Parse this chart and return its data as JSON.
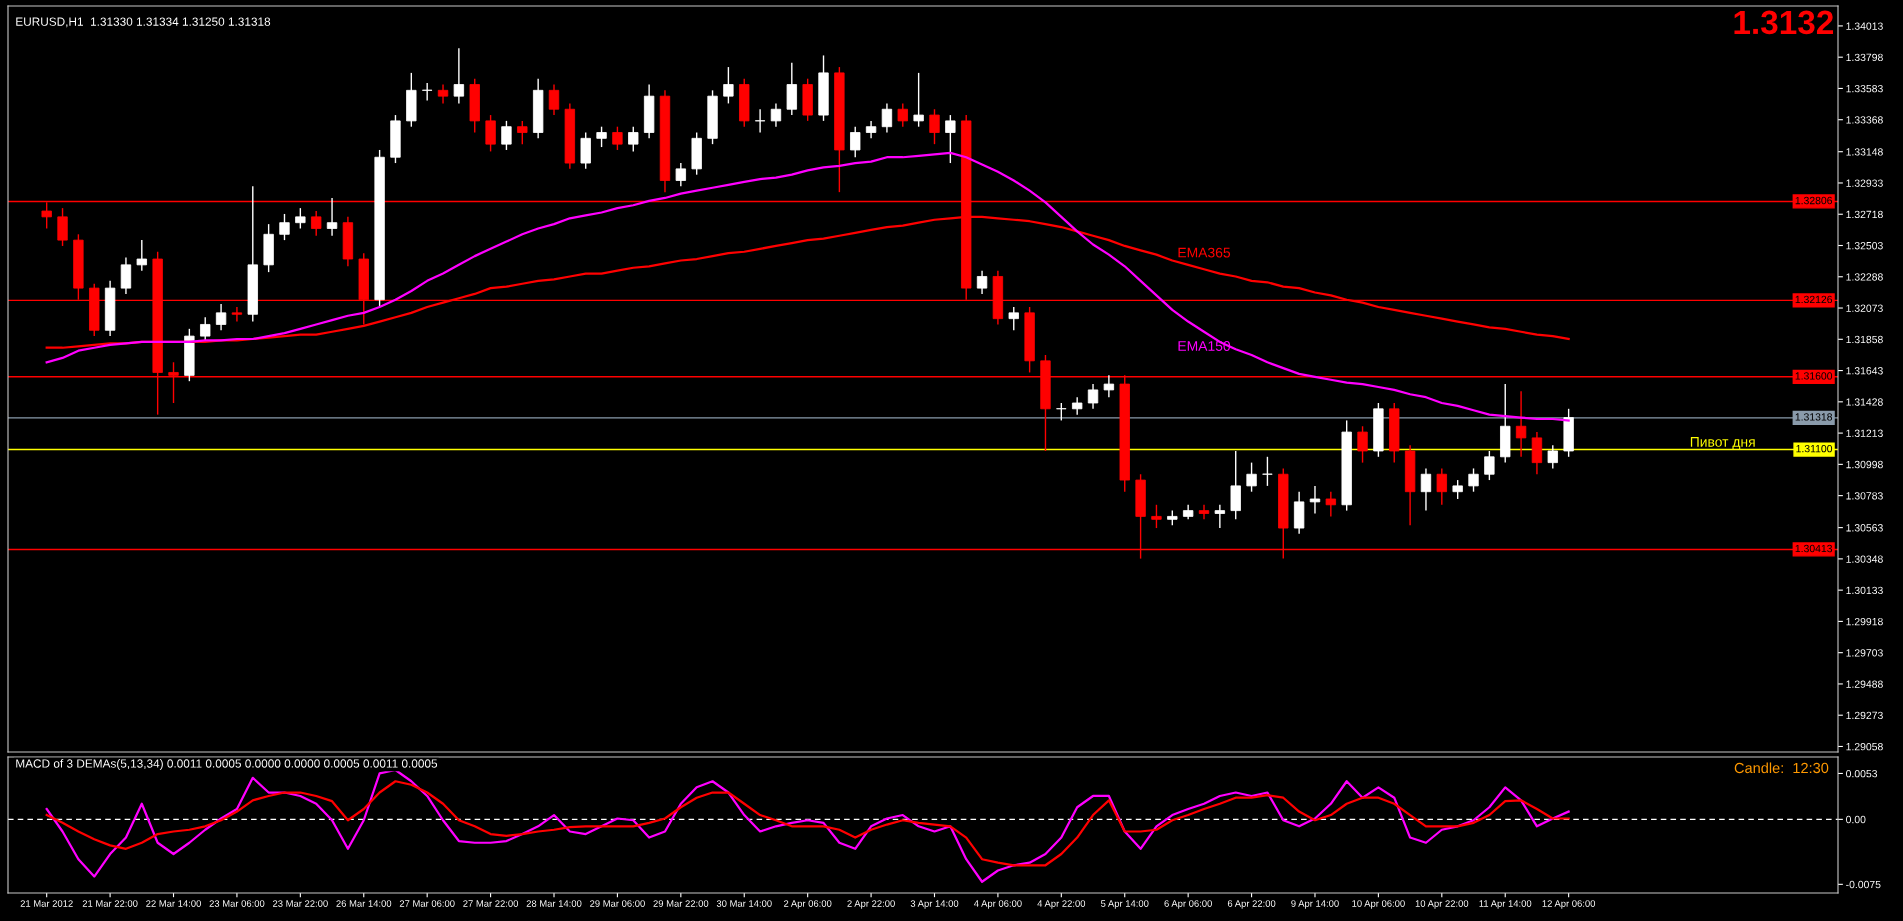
{
  "chart_data": [
    {
      "type": "candlestick",
      "title": "EURUSD,H1  1.31330 1.31334 1.31250 1.31318",
      "categories": [
        null,
        null,
        null,
        null,
        null,
        null,
        null,
        null,
        null,
        null,
        null,
        null,
        null,
        null,
        null,
        null,
        null,
        null,
        null,
        null,
        null,
        null,
        null,
        null,
        null,
        null,
        null,
        null,
        null,
        null,
        null,
        null,
        null,
        null,
        null,
        null,
        null,
        null,
        null,
        null,
        null,
        null,
        null,
        null,
        null,
        null,
        null,
        null,
        null,
        null,
        null,
        null,
        null,
        null,
        null,
        null,
        null,
        null,
        null,
        null,
        null,
        null,
        null,
        null,
        null,
        null,
        null,
        null,
        null,
        null,
        null,
        null,
        null,
        null,
        null,
        null,
        null,
        null,
        null,
        null,
        null,
        null,
        null,
        null,
        null,
        null,
        null,
        null,
        null,
        null,
        null,
        null,
        null,
        null,
        null,
        null,
        null
      ],
      "ohlc": [
        [
          1.3274,
          1.328,
          1.3262,
          1.327
        ],
        [
          1.327,
          1.3276,
          1.325,
          1.3254
        ],
        [
          1.3254,
          1.3258,
          1.3213,
          1.3221
        ],
        [
          1.3221,
          1.3224,
          1.3188,
          1.3192
        ],
        [
          1.3192,
          1.3226,
          1.3188,
          1.3221
        ],
        [
          1.3221,
          1.3242,
          1.3217,
          1.3237
        ],
        [
          1.3237,
          1.3254,
          1.3233,
          1.3241
        ],
        [
          1.3241,
          1.3246,
          1.3134,
          1.3163
        ],
        [
          1.3163,
          1.317,
          1.3142,
          1.3161
        ],
        [
          1.3161,
          1.3193,
          1.3157,
          1.3188
        ],
        [
          1.3188,
          1.3201,
          1.3184,
          1.3196
        ],
        [
          1.3196,
          1.321,
          1.3192,
          1.3204
        ],
        [
          1.3204,
          1.3208,
          1.3198,
          1.3203
        ],
        [
          1.3203,
          1.3291,
          1.3198,
          1.3237
        ],
        [
          1.3237,
          1.3265,
          1.3232,
          1.3258
        ],
        [
          1.3258,
          1.3272,
          1.3254,
          1.3266
        ],
        [
          1.3266,
          1.3276,
          1.3262,
          1.327
        ],
        [
          1.327,
          1.3274,
          1.3257,
          1.3262
        ],
        [
          1.3262,
          1.3283,
          1.3257,
          1.3266
        ],
        [
          1.3266,
          1.327,
          1.3236,
          1.3241
        ],
        [
          1.3241,
          1.3245,
          1.3196,
          1.3213
        ],
        [
          1.3213,
          1.3316,
          1.3208,
          1.3311
        ],
        [
          1.3311,
          1.334,
          1.3307,
          1.3336
        ],
        [
          1.3336,
          1.3369,
          1.3332,
          1.3357
        ],
        [
          1.3357,
          1.3362,
          1.335,
          1.3357
        ],
        [
          1.3357,
          1.3361,
          1.3348,
          1.3353
        ],
        [
          1.3353,
          1.3386,
          1.3348,
          1.3361
        ],
        [
          1.3361,
          1.3365,
          1.3328,
          1.3336
        ],
        [
          1.3336,
          1.334,
          1.3315,
          1.332
        ],
        [
          1.332,
          1.3336,
          1.3316,
          1.3332
        ],
        [
          1.3332,
          1.3336,
          1.332,
          1.3328
        ],
        [
          1.3328,
          1.3365,
          1.3324,
          1.3357
        ],
        [
          1.3357,
          1.3361,
          1.334,
          1.3344
        ],
        [
          1.3344,
          1.3348,
          1.3303,
          1.3307
        ],
        [
          1.3307,
          1.3328,
          1.3303,
          1.3324
        ],
        [
          1.3324,
          1.3332,
          1.3318,
          1.3328
        ],
        [
          1.3328,
          1.3332,
          1.3316,
          1.332
        ],
        [
          1.332,
          1.3332,
          1.3315,
          1.3328
        ],
        [
          1.3328,
          1.3361,
          1.3324,
          1.3353
        ],
        [
          1.3353,
          1.3357,
          1.3287,
          1.3295
        ],
        [
          1.3295,
          1.3307,
          1.3291,
          1.3303
        ],
        [
          1.3303,
          1.3328,
          1.3299,
          1.3324
        ],
        [
          1.3324,
          1.3357,
          1.332,
          1.3353
        ],
        [
          1.3353,
          1.3373,
          1.3348,
          1.3361
        ],
        [
          1.3361,
          1.3365,
          1.3332,
          1.3336
        ],
        [
          1.3336,
          1.3344,
          1.3328,
          1.3336
        ],
        [
          1.3336,
          1.3348,
          1.3332,
          1.3344
        ],
        [
          1.3344,
          1.3376,
          1.334,
          1.3361
        ],
        [
          1.3361,
          1.3365,
          1.3336,
          1.334
        ],
        [
          1.334,
          1.3381,
          1.3336,
          1.3369
        ],
        [
          1.3369,
          1.3373,
          1.3287,
          1.3316
        ],
        [
          1.3316,
          1.3332,
          1.3311,
          1.3328
        ],
        [
          1.3328,
          1.3336,
          1.3324,
          1.3332
        ],
        [
          1.3332,
          1.3348,
          1.3328,
          1.3344
        ],
        [
          1.3344,
          1.3348,
          1.3332,
          1.3336
        ],
        [
          1.3336,
          1.3369,
          1.3332,
          1.334
        ],
        [
          1.334,
          1.3344,
          1.332,
          1.3328
        ],
        [
          1.3328,
          1.334,
          1.3307,
          1.3336
        ],
        [
          1.3336,
          1.334,
          1.3213,
          1.3221
        ],
        [
          1.3221,
          1.3233,
          1.3217,
          1.3229
        ],
        [
          1.3229,
          1.3233,
          1.3196,
          1.32
        ],
        [
          1.32,
          1.3208,
          1.3192,
          1.3204
        ],
        [
          1.3204,
          1.3208,
          1.3163,
          1.3171
        ],
        [
          1.3171,
          1.3175,
          1.3109,
          1.3138
        ],
        [
          1.3138,
          1.3142,
          1.313,
          1.3138
        ],
        [
          1.3138,
          1.3146,
          1.3134,
          1.3142
        ],
        [
          1.3142,
          1.3155,
          1.3138,
          1.3151
        ],
        [
          1.3151,
          1.3161,
          1.3146,
          1.3155
        ],
        [
          1.3155,
          1.3161,
          1.3081,
          1.3089
        ],
        [
          1.3089,
          1.3093,
          1.3035,
          1.3064
        ],
        [
          1.3064,
          1.3072,
          1.3056,
          1.3062
        ],
        [
          1.3062,
          1.3068,
          1.3058,
          1.3064
        ],
        [
          1.3064,
          1.3072,
          1.3062,
          1.3068
        ],
        [
          1.3068,
          1.3072,
          1.3062,
          1.3066
        ],
        [
          1.3066,
          1.3072,
          1.3056,
          1.3068
        ],
        [
          1.3068,
          1.3109,
          1.3062,
          1.3085
        ],
        [
          1.3085,
          1.3101,
          1.3081,
          1.3093
        ],
        [
          1.3093,
          1.3105,
          1.3085,
          1.3093
        ],
        [
          1.3093,
          1.3097,
          1.3035,
          1.3056
        ],
        [
          1.3056,
          1.3081,
          1.3052,
          1.3074
        ],
        [
          1.3074,
          1.3085,
          1.3066,
          1.3076
        ],
        [
          1.3076,
          1.3081,
          1.3064,
          1.3072
        ],
        [
          1.3072,
          1.313,
          1.3068,
          1.3122
        ],
        [
          1.3122,
          1.3126,
          1.3101,
          1.3109
        ],
        [
          1.3109,
          1.3142,
          1.3105,
          1.3138
        ],
        [
          1.3138,
          1.3142,
          1.3101,
          1.3109
        ],
        [
          1.3109,
          1.3113,
          1.3058,
          1.3081
        ],
        [
          1.3081,
          1.3097,
          1.3068,
          1.3093
        ],
        [
          1.3093,
          1.3097,
          1.3072,
          1.3081
        ],
        [
          1.3081,
          1.3089,
          1.3076,
          1.3085
        ],
        [
          1.3085,
          1.3097,
          1.3081,
          1.3093
        ],
        [
          1.3093,
          1.3109,
          1.3089,
          1.3105
        ],
        [
          1.3105,
          1.3155,
          1.3101,
          1.3126
        ],
        [
          1.3126,
          1.315,
          1.3105,
          1.3118
        ],
        [
          1.3118,
          1.3122,
          1.3093,
          1.3101
        ],
        [
          1.3101,
          1.3113,
          1.3097,
          1.3109
        ],
        [
          1.3109,
          1.3138,
          1.3105,
          1.3132
        ]
      ],
      "series": [
        {
          "name": "EMA365",
          "type": "line",
          "color": "#ff0000",
          "values": [
            1.318,
            1.318,
            1.3181,
            1.3182,
            1.3183,
            1.3183,
            1.3184,
            1.3184,
            1.3184,
            1.3184,
            1.3184,
            1.3185,
            1.3185,
            1.3186,
            1.3187,
            1.3188,
            1.3189,
            1.3189,
            1.3191,
            1.3193,
            1.3195,
            1.3198,
            1.3201,
            1.3204,
            1.3208,
            1.3211,
            1.3214,
            1.3217,
            1.3221,
            1.3222,
            1.3224,
            1.3226,
            1.3227,
            1.3229,
            1.3231,
            1.3231,
            1.3233,
            1.3235,
            1.3236,
            1.3238,
            1.324,
            1.3241,
            1.3243,
            1.3245,
            1.3246,
            1.3248,
            1.325,
            1.3252,
            1.3254,
            1.3255,
            1.3257,
            1.3259,
            1.3261,
            1.3263,
            1.3264,
            1.3266,
            1.3268,
            1.3269,
            1.327,
            1.327,
            1.3269,
            1.3268,
            1.3267,
            1.3265,
            1.3263,
            1.326,
            1.3257,
            1.3254,
            1.325,
            1.3247,
            1.3244,
            1.324,
            1.3237,
            1.3234,
            1.3231,
            1.3229,
            1.3226,
            1.3225,
            1.3222,
            1.3221,
            1.3218,
            1.3216,
            1.3213,
            1.3211,
            1.3208,
            1.3206,
            1.3204,
            1.3202,
            1.32,
            1.3198,
            1.3196,
            1.3194,
            1.3193,
            1.3191,
            1.3189,
            1.3188,
            1.3186
          ]
        },
        {
          "name": "EMA150",
          "type": "line",
          "color": "#ff00ff",
          "values": [
            1.317,
            1.3173,
            1.3178,
            1.318,
            1.3182,
            1.3183,
            1.3184,
            1.3184,
            1.3184,
            1.3184,
            1.3185,
            1.3185,
            1.3186,
            1.3186,
            1.3188,
            1.319,
            1.3193,
            1.3196,
            1.3199,
            1.3202,
            1.3204,
            1.3208,
            1.3213,
            1.3219,
            1.3226,
            1.3231,
            1.3237,
            1.3243,
            1.3248,
            1.3253,
            1.3258,
            1.3262,
            1.3265,
            1.3269,
            1.3271,
            1.3273,
            1.3276,
            1.3278,
            1.3281,
            1.3283,
            1.3286,
            1.3288,
            1.329,
            1.3292,
            1.3294,
            1.3296,
            1.3297,
            1.3299,
            1.3302,
            1.3304,
            1.3305,
            1.3307,
            1.3308,
            1.3311,
            1.3311,
            1.3312,
            1.3313,
            1.3314,
            1.3311,
            1.3306,
            1.3301,
            1.3295,
            1.3288,
            1.328,
            1.327,
            1.326,
            1.3251,
            1.3244,
            1.3236,
            1.3226,
            1.3216,
            1.3206,
            1.3198,
            1.3191,
            1.3184,
            1.3179,
            1.3175,
            1.317,
            1.3166,
            1.3162,
            1.316,
            1.3158,
            1.3156,
            1.3155,
            1.3153,
            1.3151,
            1.3148,
            1.3146,
            1.3142,
            1.314,
            1.3137,
            1.3134,
            1.3133,
            1.3132,
            1.3131,
            1.3131,
            1.313
          ]
        }
      ],
      "ylim": [
        1.2902,
        1.3415
      ],
      "yticks": [
        1.29058,
        1.29273,
        1.29488,
        1.29703,
        1.29918,
        1.30133,
        1.30348,
        1.30563,
        1.30783,
        1.30998,
        1.31213,
        1.31428,
        1.31643,
        1.31858,
        1.32073,
        1.32288,
        1.32503,
        1.32718,
        1.32933,
        1.33148,
        1.33368,
        1.33583,
        1.33798,
        1.34013
      ],
      "ref_lines": [
        {
          "axis": "y",
          "value": 1.32806,
          "label": "1.32806",
          "color": "#ff0000"
        },
        {
          "axis": "y",
          "value": 1.32126,
          "label": "1.32126",
          "color": "#ff0000"
        },
        {
          "axis": "y",
          "value": 1.316,
          "label": "1.31600",
          "color": "#ff0000"
        },
        {
          "axis": "y",
          "value": 1.31318,
          "label": "1.31318",
          "color": "#8a9bab"
        },
        {
          "axis": "y",
          "value": 1.311,
          "label": "1.31100",
          "color": "#ffff00"
        },
        {
          "axis": "y",
          "value": 1.30413,
          "label": "1.30413",
          "color": "#ff0000"
        }
      ],
      "annotations": [
        "1.3132",
        {
          "text": "Пивот дня",
          "y": 1.311
        }
      ],
      "tick_labels": "y"
    },
    {
      "type": "line",
      "title": "MACD of 3 DEMAs(5,13,34) 0.0011 0.0005 0.0000 0.0000 0.0005 0.0011 0.0005",
      "categories": [
        "21 Mar 2012",
        null,
        null,
        null,
        "21 Mar 22:00",
        null,
        null,
        null,
        "22 Mar 14:00",
        null,
        null,
        null,
        "23 Mar 06:00",
        null,
        null,
        null,
        "23 Mar 22:00",
        null,
        null,
        null,
        "26 Mar 14:00",
        null,
        null,
        null,
        "27 Mar 06:00",
        null,
        null,
        null,
        "27 Mar 22:00",
        null,
        null,
        null,
        "28 Mar 14:00",
        null,
        null,
        null,
        "29 Mar 06:00",
        null,
        null,
        null,
        "29 Mar 22:00",
        null,
        null,
        null,
        "30 Mar 14:00",
        null,
        null,
        null,
        "2 Apr 06:00",
        null,
        null,
        null,
        "2 Apr 22:00",
        null,
        null,
        null,
        "3 Apr 14:00",
        null,
        null,
        null,
        "4 Apr 06:00",
        null,
        null,
        null,
        "4 Apr 22:00",
        null,
        null,
        null,
        "5 Apr 14:00",
        null,
        null,
        null,
        "6 Apr 06:00",
        null,
        null,
        null,
        "6 Apr 22:00",
        null,
        null,
        null,
        "9 Apr 14:00",
        null,
        null,
        null,
        "10 Apr 06:00",
        null,
        null,
        null,
        "10 Apr 22:00",
        null,
        null,
        null,
        "11 Apr 14:00",
        null,
        null,
        null,
        "12 Apr 06:00"
      ],
      "series": [
        {
          "color": "#ff00ff",
          "values": [
            0.0012,
            -0.0014,
            -0.0046,
            -0.0066,
            -0.004,
            -0.0021,
            0.0018,
            -0.0027,
            -0.004,
            -0.0027,
            -0.0012,
            0.0001,
            0.0012,
            0.0048,
            0.0031,
            0.0031,
            0.0027,
            0.0018,
            -0.0001,
            -0.0034,
            -0.0001,
            0.0053,
            0.0057,
            0.0044,
            0.0027,
            -0.0001,
            -0.0025,
            -0.0027,
            -0.0027,
            -0.0025,
            -0.0017,
            -0.0008,
            0.0005,
            -0.0014,
            -0.0017,
            -0.0008,
            0.0001,
            -0.0001,
            -0.0021,
            -0.0014,
            0.0018,
            0.0037,
            0.0044,
            0.0031,
            0.0005,
            -0.0014,
            -0.0008,
            -0.0004,
            -0.0001,
            -0.0004,
            -0.0027,
            -0.0034,
            -0.0008,
            0.0001,
            0.0005,
            -0.0008,
            -0.0014,
            -0.0008,
            -0.0046,
            -0.0072,
            -0.0059,
            -0.0053,
            -0.005,
            -0.004,
            -0.0021,
            0.0014,
            0.0027,
            0.0027,
            -0.0014,
            -0.0034,
            -0.0008,
            0.0005,
            0.0012,
            0.0018,
            0.0027,
            0.0031,
            0.0027,
            0.0031,
            -0.0001,
            -0.0008,
            0.0001,
            0.0018,
            0.0044,
            0.0025,
            0.0037,
            0.0025,
            -0.0021,
            -0.0027,
            -0.0012,
            -0.0008,
            -0.0001,
            0.0014,
            0.0037,
            0.0022,
            -0.0008,
            0.0001,
            0.0009
          ]
        },
        {
          "color": "#ff0000",
          "values": [
            0.0005,
            -0.0004,
            -0.0014,
            -0.0023,
            -0.003,
            -0.0034,
            -0.0027,
            -0.0017,
            -0.0014,
            -0.0012,
            -0.0008,
            -0.0001,
            0.0009,
            0.0022,
            0.0027,
            0.0031,
            0.0031,
            0.0027,
            0.0021,
            -0.0001,
            0.0012,
            0.0031,
            0.0044,
            0.004,
            0.0031,
            0.0018,
            -0.0001,
            -0.0008,
            -0.0017,
            -0.0019,
            -0.0017,
            -0.0014,
            -0.0012,
            -0.0009,
            -0.0008,
            -0.0008,
            -0.0008,
            -0.0008,
            -0.0004,
            0.0001,
            0.0014,
            0.0025,
            0.0031,
            0.0031,
            0.0018,
            0.0005,
            -0.0001,
            -0.0008,
            -0.0008,
            -0.0008,
            -0.0012,
            -0.0021,
            -0.0012,
            -0.0006,
            -0.0001,
            -0.0004,
            -0.0006,
            -0.0008,
            -0.0021,
            -0.0046,
            -0.005,
            -0.0053,
            -0.0053,
            -0.0053,
            -0.004,
            -0.0021,
            0.0005,
            0.0022,
            -0.0014,
            -0.0014,
            -0.0012,
            -0.0001,
            0.0005,
            0.0012,
            0.0018,
            0.0025,
            0.0025,
            0.0028,
            0.0025,
            0.0009,
            -0.0001,
            0.0005,
            0.0018,
            0.0025,
            0.0025,
            0.0018,
            0.0005,
            -0.0008,
            -0.0008,
            -0.0008,
            -0.0004,
            0.0005,
            0.0021,
            0.0022,
            0.0012,
            0.0001,
            0.0001
          ]
        }
      ],
      "ylim": [
        -0.0085,
        0.0072
      ],
      "yticks": [
        -0.0075,
        {
          "value": 0,
          "label": "0.00"
        },
        0.0053
      ],
      "ref_lines": [
        {
          "axis": "y",
          "value": 0,
          "color": "#ffffff",
          "line_style": "dashed"
        }
      ],
      "annotations": [
        "Candle:  12:30"
      ]
    }
  ]
}
